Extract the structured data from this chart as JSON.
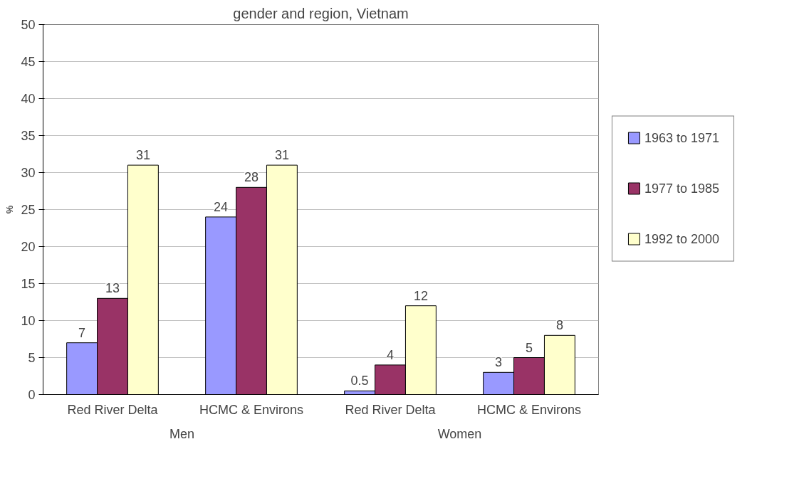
{
  "chart_data": {
    "type": "bar",
    "title": "gender and region, Vietnam",
    "ylabel": "%",
    "categories": [
      "Red River Delta",
      "HCMC & Environs",
      "Red River Delta",
      "HCMC & Environs"
    ],
    "annotations": [
      "Men",
      "Women"
    ],
    "series": [
      {
        "name": "1963 to 1971",
        "color": "#9999ff",
        "values": [
          7,
          24,
          0.5,
          3
        ]
      },
      {
        "name": "1977 to 1985",
        "color": "#993366",
        "values": [
          13,
          28,
          4,
          5
        ]
      },
      {
        "name": "1992 to 2000",
        "color": "#ffffcc",
        "values": [
          31,
          31,
          12,
          8
        ]
      }
    ],
    "ylim": [
      0,
      50
    ],
    "yticks": [
      0,
      5,
      10,
      15,
      20,
      25,
      30,
      35,
      40,
      45,
      50
    ],
    "grid": "y",
    "legend": "right",
    "data_labels": true
  }
}
